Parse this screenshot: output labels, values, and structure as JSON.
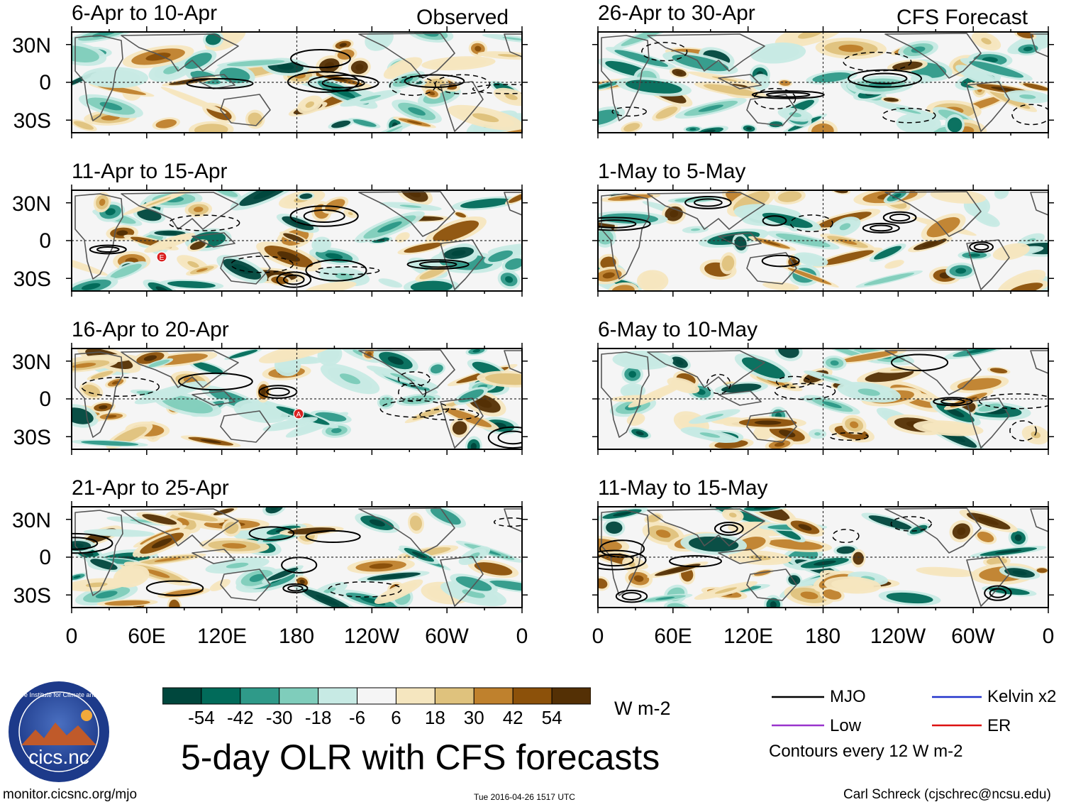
{
  "header": {
    "left_label": "Observed",
    "right_label": "CFS Forecast"
  },
  "panels": [
    {
      "title": "6-Apr to 10-Apr",
      "column": "observed"
    },
    {
      "title": "11-Apr to 15-Apr",
      "column": "observed",
      "marker": "E"
    },
    {
      "title": "16-Apr to 20-Apr",
      "column": "observed",
      "marker": "A"
    },
    {
      "title": "21-Apr to 25-Apr",
      "column": "observed"
    },
    {
      "title": "26-Apr to 30-Apr",
      "column": "forecast"
    },
    {
      "title": "1-May to 5-May",
      "column": "forecast"
    },
    {
      "title": "6-May to 10-May",
      "column": "forecast"
    },
    {
      "title": "11-May to 15-May",
      "column": "forecast"
    }
  ],
  "chart_data": {
    "type": "heatmap",
    "title": "5-day OLR with CFS forecasts",
    "variable": "OLR anomaly",
    "units": "W m-2",
    "y_ticks": [
      "30N",
      "0",
      "30S"
    ],
    "x_ticks": [
      "0",
      "60E",
      "120E",
      "180",
      "120W",
      "60W",
      "0"
    ],
    "xlim": [
      0,
      360
    ],
    "ylim": [
      -40,
      40
    ],
    "colorbar": {
      "ticks": [
        "-54",
        "-42",
        "-30",
        "-18",
        "-6",
        "6",
        "18",
        "30",
        "42",
        "54"
      ],
      "colors": [
        "#00473d",
        "#016b5a",
        "#2f9a89",
        "#7fcdbb",
        "#c7eae4",
        "#f5f5f5",
        "#f5e6bf",
        "#dfc27d",
        "#bf812d",
        "#8c510a",
        "#543005"
      ]
    },
    "contours": {
      "interval": "Contours every 12 W m-2",
      "legend": [
        {
          "label": "MJO",
          "color": "#000000"
        },
        {
          "label": "Kelvin x2",
          "color": "#2233cc"
        },
        {
          "label": "Low",
          "color": "#9933cc"
        },
        {
          "label": "ER",
          "color": "#dd1111"
        }
      ]
    }
  },
  "footer": {
    "url": "monitor.cicsnc.org/mjo",
    "timestamp": "Tue 2016-04-26 1517 UTC",
    "author": "Carl Schreck (cjschrec@ncsu.edu)",
    "logo_text": "cics.nc",
    "logo_ring_text": "Cooperative Institute for Climate and Satellites"
  }
}
